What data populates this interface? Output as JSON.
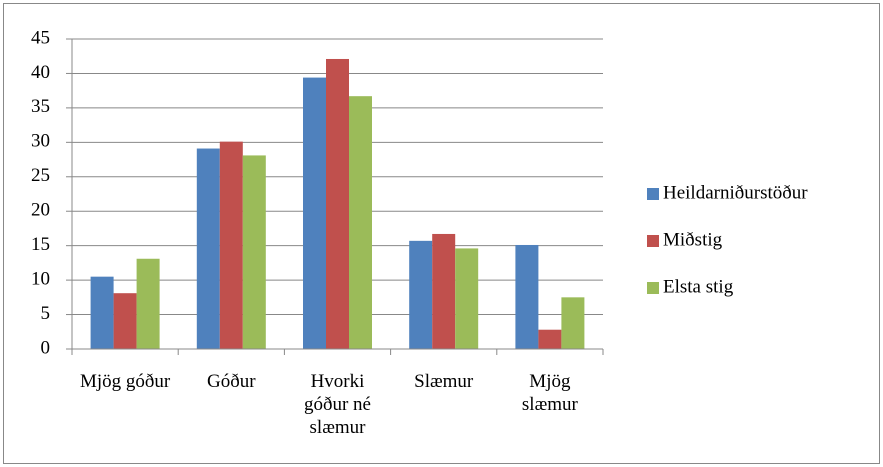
{
  "chart_data": {
    "type": "bar",
    "categories": [
      "Mjög góður",
      "Góður",
      "Hvorki góður né slæmur",
      "Slæmur",
      "Mjög slæmur"
    ],
    "series": [
      {
        "name": "Heildarniðurstöður",
        "color": "#4f81bd",
        "values": [
          10.5,
          29.1,
          39.4,
          15.7,
          15.1
        ]
      },
      {
        "name": "Miðstig",
        "color": "#c0504d",
        "values": [
          8.1,
          30.1,
          42.1,
          16.7,
          2.8
        ]
      },
      {
        "name": "Elsta stig",
        "color": "#9bbb59",
        "values": [
          13.1,
          28.1,
          36.7,
          14.6,
          7.5
        ]
      }
    ],
    "ylim": [
      0,
      45
    ],
    "yticks": [
      0,
      5,
      10,
      15,
      20,
      25,
      30,
      35,
      40,
      45
    ],
    "grid": true,
    "legend": "right"
  }
}
